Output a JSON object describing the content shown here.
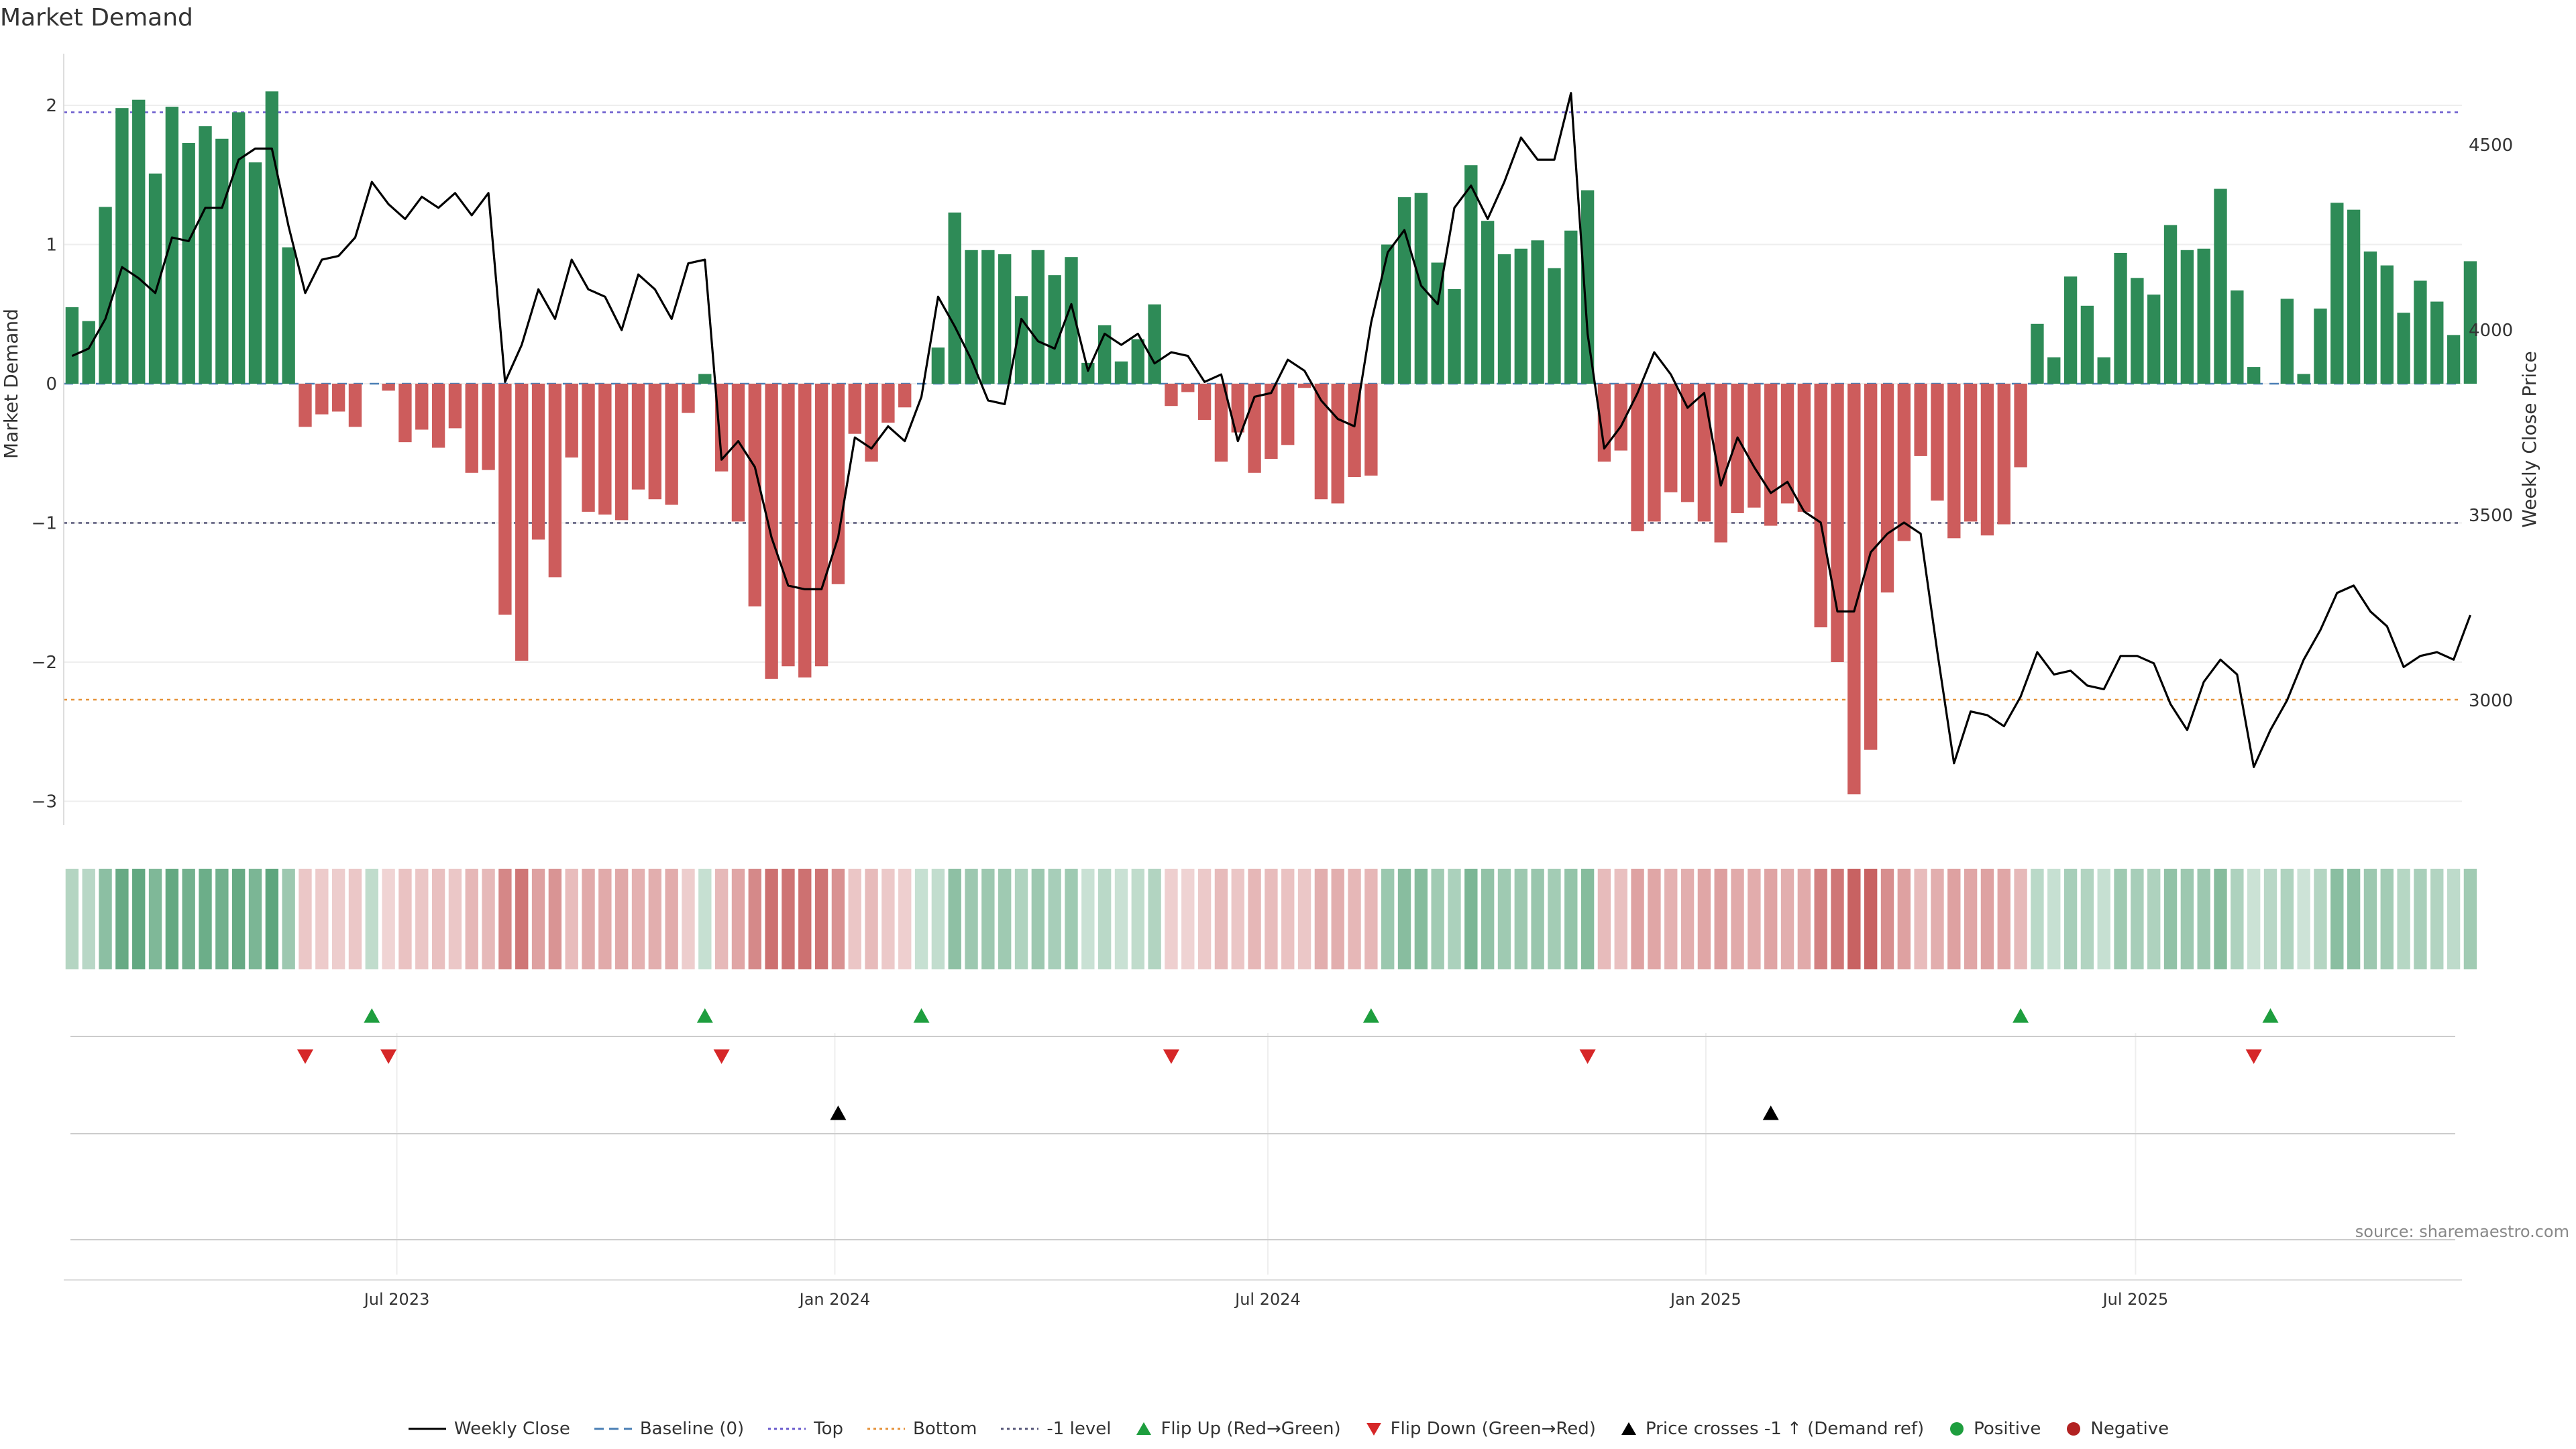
{
  "title": "Market Demand",
  "source_text": "source: sharemaestro.com",
  "colors": {
    "positive": "#2e8b57",
    "negative": "#cd5c5c",
    "price_line": "#000000",
    "top_line": "#6a5acd",
    "bottom_line": "#e69138",
    "minus_one_line": "#555577",
    "baseline": "#4a7fb5",
    "flip_up": "#1e9e3e",
    "flip_down": "#d62728",
    "cross": "#000000"
  },
  "legend": [
    {
      "label": "Weekly Close",
      "kind": "line",
      "color": "#000000"
    },
    {
      "label": "Baseline (0)",
      "kind": "dash",
      "color": "#4a7fb5"
    },
    {
      "label": "Top",
      "kind": "dot",
      "color": "#6a5acd"
    },
    {
      "label": "Bottom",
      "kind": "dot",
      "color": "#e69138"
    },
    {
      "label": "-1 level",
      "kind": "dot",
      "color": "#555577"
    },
    {
      "label": "Flip Up (Red→Green)",
      "kind": "up",
      "color": "#1e9e3e"
    },
    {
      "label": "Flip Down (Green→Red)",
      "kind": "down",
      "color": "#d62728"
    },
    {
      "label": "Price crosses -1 ↑ (Demand ref)",
      "kind": "up",
      "color": "#000000"
    },
    {
      "label": "Positive",
      "kind": "dot-marker",
      "color": "#1e9e3e"
    },
    {
      "label": "Negative",
      "kind": "dot-marker",
      "color": "#b22222"
    }
  ],
  "chart_data": {
    "type": "bar",
    "ylabel": "Market Demand",
    "y2label": "Weekly Close Price",
    "ylim": [
      -3.2,
      2.4
    ],
    "yticks": [
      "2",
      "1",
      "0",
      "−1",
      "−2",
      "−3"
    ],
    "y2lim": [
      2740,
      4770
    ],
    "y2ticks": [
      "4500",
      "4000",
      "3500",
      "3000"
    ],
    "x_range_weeks": [
      0,
      144
    ],
    "xticks": [
      {
        "week": 20,
        "label": "Jul 2023"
      },
      {
        "week": 46.3,
        "label": "Jan 2024"
      },
      {
        "week": 72.3,
        "label": "Jul 2024"
      },
      {
        "week": 98.6,
        "label": "Jan 2025"
      },
      {
        "week": 124.4,
        "label": "Jul 2025"
      }
    ],
    "levels": {
      "top": 1.95,
      "bottom": -2.27,
      "minus_one": -1.0,
      "baseline": 0
    },
    "demand": [
      0.55,
      0.45,
      1.27,
      1.98,
      2.04,
      1.51,
      1.99,
      1.73,
      1.85,
      1.76,
      1.95,
      1.59,
      2.1,
      0.98,
      -0.31,
      -0.22,
      -0.2,
      -0.31,
      0,
      -0.05,
      -0.42,
      -0.33,
      -0.46,
      -0.32,
      -0.64,
      -0.62,
      -1.66,
      -1.99,
      -1.12,
      -1.39,
      -0.53,
      -0.92,
      -0.94,
      -0.98,
      -0.76,
      -0.83,
      -0.87,
      -0.21,
      0.07,
      -0.63,
      -0.99,
      -1.6,
      -2.12,
      -2.03,
      -2.11,
      -2.03,
      -1.44,
      -0.36,
      -0.56,
      -0.28,
      -0.17,
      0,
      0.26,
      1.23,
      0.96,
      0.96,
      0.93,
      0.63,
      0.96,
      0.78,
      0.91,
      0.15,
      0.42,
      0.16,
      0.32,
      0.57,
      -0.16,
      -0.06,
      -0.26,
      -0.56,
      -0.35,
      -0.64,
      -0.54,
      -0.44,
      -0.03,
      -0.83,
      -0.86,
      -0.67,
      -0.66,
      1.0,
      1.34,
      1.37,
      0.87,
      0.68,
      1.57,
      1.17,
      0.93,
      0.97,
      1.03,
      0.83,
      1.1,
      1.39,
      -0.56,
      -0.48,
      -1.06,
      -0.99,
      -0.78,
      -0.85,
      -0.99,
      -1.14,
      -0.93,
      -0.89,
      -1.02,
      -0.86,
      -0.92,
      -1.75,
      -2.0,
      -2.95,
      -2.63,
      -1.5,
      -1.13,
      -0.52,
      -0.84,
      -1.11,
      -0.99,
      -1.09,
      -1.01,
      -0.6,
      0.43,
      0.19,
      0.77,
      0.56,
      0.19,
      0.94,
      0.76,
      0.64,
      1.14,
      0.96,
      0.97,
      1.4,
      0.67,
      0.12,
      0,
      0.61,
      0.07,
      0.54,
      1.3,
      1.25,
      0.95,
      0.85,
      0.51,
      0.74,
      0.59,
      0.35,
      0.88
    ],
    "close": [
      3930,
      3950,
      4030,
      4170,
      4140,
      4100,
      4250,
      4240,
      4330,
      4330,
      4460,
      4490,
      4490,
      4280,
      4100,
      4190,
      4200,
      4250,
      4400,
      4340,
      4300,
      4360,
      4330,
      4370,
      4310,
      4370,
      3860,
      3960,
      4110,
      4030,
      4190,
      4110,
      4090,
      4000,
      4150,
      4110,
      4030,
      4180,
      4190,
      3650,
      3700,
      3630,
      3440,
      3310,
      3300,
      3300,
      3440,
      3710,
      3680,
      3740,
      3700,
      3820,
      4090,
      4010,
      3920,
      3810,
      3800,
      4030,
      3970,
      3950,
      4070,
      3890,
      3990,
      3960,
      3990,
      3910,
      3940,
      3930,
      3860,
      3880,
      3700,
      3820,
      3830,
      3920,
      3890,
      3810,
      3760,
      3740,
      4020,
      4210,
      4270,
      4120,
      4070,
      4330,
      4390,
      4300,
      4400,
      4520,
      4460,
      4460,
      4640,
      3990,
      3680,
      3740,
      3830,
      3940,
      3880,
      3790,
      3830,
      3580,
      3710,
      3630,
      3560,
      3590,
      3510,
      3480,
      3240,
      3240,
      3400,
      3450,
      3480,
      3450,
      3130,
      2830,
      2970,
      2960,
      2930,
      3010,
      3130,
      3070,
      3080,
      3040,
      3030,
      3120,
      3120,
      3100,
      2990,
      2920,
      3050,
      3110,
      3070,
      2820,
      2920,
      3000,
      3110,
      3190,
      3290,
      3310,
      3240,
      3200,
      3090,
      3120,
      3130,
      3110,
      3230
    ],
    "strength": [
      0.55,
      0.45,
      1.27,
      1.98,
      2.04,
      1.51,
      1.99,
      1.73,
      1.85,
      1.76,
      1.95,
      1.59,
      2.1,
      0.98,
      -0.31,
      -0.22,
      -0.2,
      -0.31,
      0.32,
      -0.05,
      -0.42,
      -0.33,
      -0.46,
      -0.32,
      -0.64,
      -0.62,
      -1.66,
      -1.99,
      -1.12,
      -1.39,
      -0.53,
      -0.92,
      -0.94,
      -0.98,
      -0.76,
      -0.83,
      -0.87,
      -0.21,
      0.2,
      -0.63,
      -0.99,
      -1.6,
      -2.12,
      -2.03,
      -2.11,
      -2.03,
      -1.44,
      -0.36,
      -0.56,
      -0.28,
      -0.17,
      0.2,
      0.26,
      1.23,
      0.96,
      0.96,
      0.93,
      0.63,
      0.96,
      0.78,
      0.91,
      0.15,
      0.42,
      0.16,
      0.32,
      0.57,
      -0.16,
      -0.06,
      -0.26,
      -0.56,
      -0.35,
      -0.64,
      -0.54,
      -0.44,
      -0.3,
      -0.83,
      -0.86,
      -0.67,
      -0.66,
      1.0,
      1.34,
      1.37,
      0.87,
      0.68,
      1.57,
      1.17,
      0.93,
      0.97,
      1.03,
      0.83,
      1.1,
      1.39,
      -0.56,
      -0.48,
      -1.06,
      -0.99,
      -0.78,
      -0.85,
      -0.99,
      -1.14,
      -0.93,
      -0.89,
      -1.02,
      -0.86,
      -0.92,
      -1.75,
      -2.0,
      -2.95,
      -2.63,
      -1.5,
      -1.13,
      -0.52,
      -0.84,
      -1.11,
      -0.99,
      -1.09,
      -1.01,
      -0.6,
      0.43,
      0.19,
      0.77,
      0.56,
      0.19,
      0.94,
      0.76,
      0.64,
      1.14,
      0.96,
      0.97,
      1.4,
      0.67,
      0.12,
      0.45,
      0.61,
      0.07,
      0.54,
      1.3,
      1.25,
      0.95,
      0.85,
      0.51,
      0.74,
      0.59,
      0.35,
      0.88
    ],
    "flip_up_weeks": [
      18.5,
      38.5,
      51.5,
      78.5,
      117.5,
      132.5
    ],
    "flip_down_weeks": [
      14.5,
      19.5,
      39.5,
      66.5,
      91.5,
      131.5
    ],
    "cross_up_weeks": [
      46.5,
      102.5
    ]
  }
}
